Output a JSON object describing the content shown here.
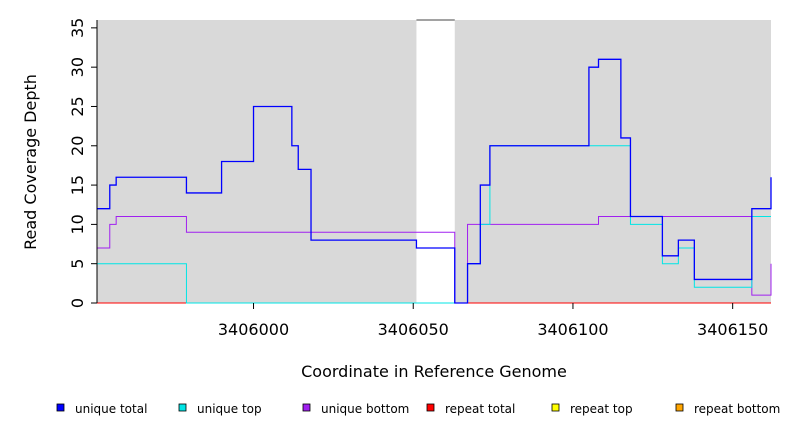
{
  "chart_data": {
    "type": "line",
    "title": "",
    "xlabel": "Coordinate in Reference Genome",
    "ylabel": "Read Coverage Depth",
    "xlim": [
      3405951,
      3406162
    ],
    "ylim": [
      0,
      36
    ],
    "xticks": [
      3406000,
      3406050,
      3406100,
      3406150
    ],
    "yticks": [
      0,
      5,
      10,
      15,
      20,
      25,
      30,
      35
    ],
    "plot_background": "#d9d9d9",
    "grid": false,
    "legend_position": "bottom",
    "gap_region": [
      3406051,
      3406063
    ],
    "series": [
      {
        "name": "unique total",
        "color": "#0000ff",
        "x": [
          3405951,
          3405955,
          3405957,
          3405978,
          3405979,
          3405990,
          3406000,
          3406012,
          3406014,
          3406018,
          3406051,
          3406063,
          3406067,
          3406071,
          3406074,
          3406105,
          3406108,
          3406115,
          3406118,
          3406128,
          3406133,
          3406138,
          3406156,
          3406162
        ],
        "y": [
          12,
          15,
          16,
          16,
          14,
          18,
          25,
          20,
          17,
          8,
          7,
          0,
          5,
          15,
          20,
          30,
          31,
          21,
          11,
          6,
          8,
          3,
          12,
          16
        ]
      },
      {
        "name": "unique top",
        "color": "#00e5e5",
        "x": [
          3405951,
          3405979,
          3406063,
          3406067,
          3406071,
          3406074,
          3406115,
          3406118,
          3406128,
          3406133,
          3406138,
          3406156,
          3406162
        ],
        "y": [
          5,
          0,
          0,
          5,
          10,
          20,
          20,
          10,
          5,
          7,
          2,
          11,
          11
        ]
      },
      {
        "name": "unique bottom",
        "color": "#a020f0",
        "x": [
          3405951,
          3405955,
          3405957,
          3405978,
          3405979,
          3406063,
          3406067,
          3406105,
          3406108,
          3406156,
          3406162
        ],
        "y": [
          7,
          10,
          11,
          11,
          9,
          0,
          10,
          10,
          11,
          1,
          5
        ]
      },
      {
        "name": "repeat total",
        "color": "#ff0000",
        "x": [
          3405951,
          3406162
        ],
        "y": [
          0,
          0
        ]
      },
      {
        "name": "repeat top",
        "color": "#ffff00",
        "x": [
          3405951,
          3406162
        ],
        "y": [
          0,
          0
        ]
      },
      {
        "name": "repeat bottom",
        "color": "#ffa500",
        "x": [
          3405951,
          3406162
        ],
        "y": [
          0,
          0
        ]
      }
    ]
  }
}
